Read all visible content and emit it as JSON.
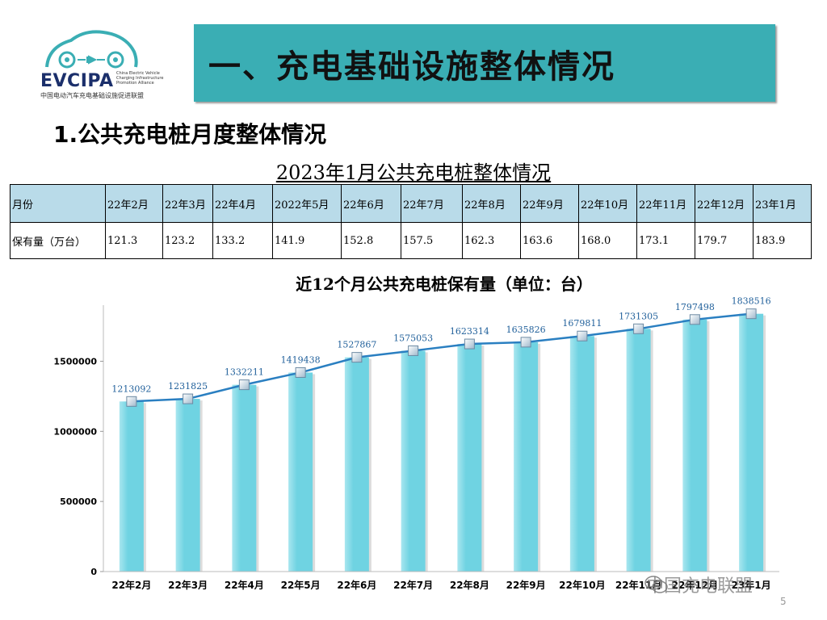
{
  "logo": {
    "brand": "EVCIPA",
    "english": "China Electric Vehicle Charging Infrastructure Promotion Alliance",
    "chinese": "中国电动汽车充电基础设施促进联盟"
  },
  "header": {
    "title": "一、充电基础设施整体情况"
  },
  "section": {
    "subtitle": "1.公共充电桩月度整体情况"
  },
  "table": {
    "title": "2023年1月公共充电桩整体情况",
    "row_headers": [
      "月份",
      "保有量（万台）"
    ],
    "months": [
      "22年2月",
      "22年3月",
      "22年4月",
      "2022年5月",
      "22年6月",
      "22年7月",
      "22年8月",
      "22年9月",
      "22年10月",
      "22年11月",
      "22年12月",
      "23年1月"
    ],
    "values": [
      "121.3",
      "123.2",
      "133.2",
      "141.9",
      "152.8",
      "157.5",
      "162.3",
      "163.6",
      "168.0",
      "173.1",
      "179.7",
      "183.9"
    ]
  },
  "chart_data": {
    "type": "bar",
    "title": "近12个月公共充电桩保有量（单位：台）",
    "categories": [
      "22年2月",
      "22年3月",
      "22年4月",
      "22年5月",
      "22年6月",
      "22年7月",
      "22年8月",
      "22年9月",
      "22年10月",
      "22年11月",
      "22年12月",
      "23年1月"
    ],
    "values": [
      1213092,
      1231825,
      1332211,
      1419438,
      1527867,
      1575053,
      1623314,
      1635826,
      1679811,
      1731305,
      1797498,
      1838516
    ],
    "overlay": "line",
    "ylim": [
      0,
      1900000
    ],
    "yticks": [
      0,
      500000,
      1000000,
      1500000
    ],
    "bar_color": "#6fd3e2",
    "line_color": "#2a7fc1"
  },
  "watermark": "中国充电联盟",
  "page_number": "5"
}
